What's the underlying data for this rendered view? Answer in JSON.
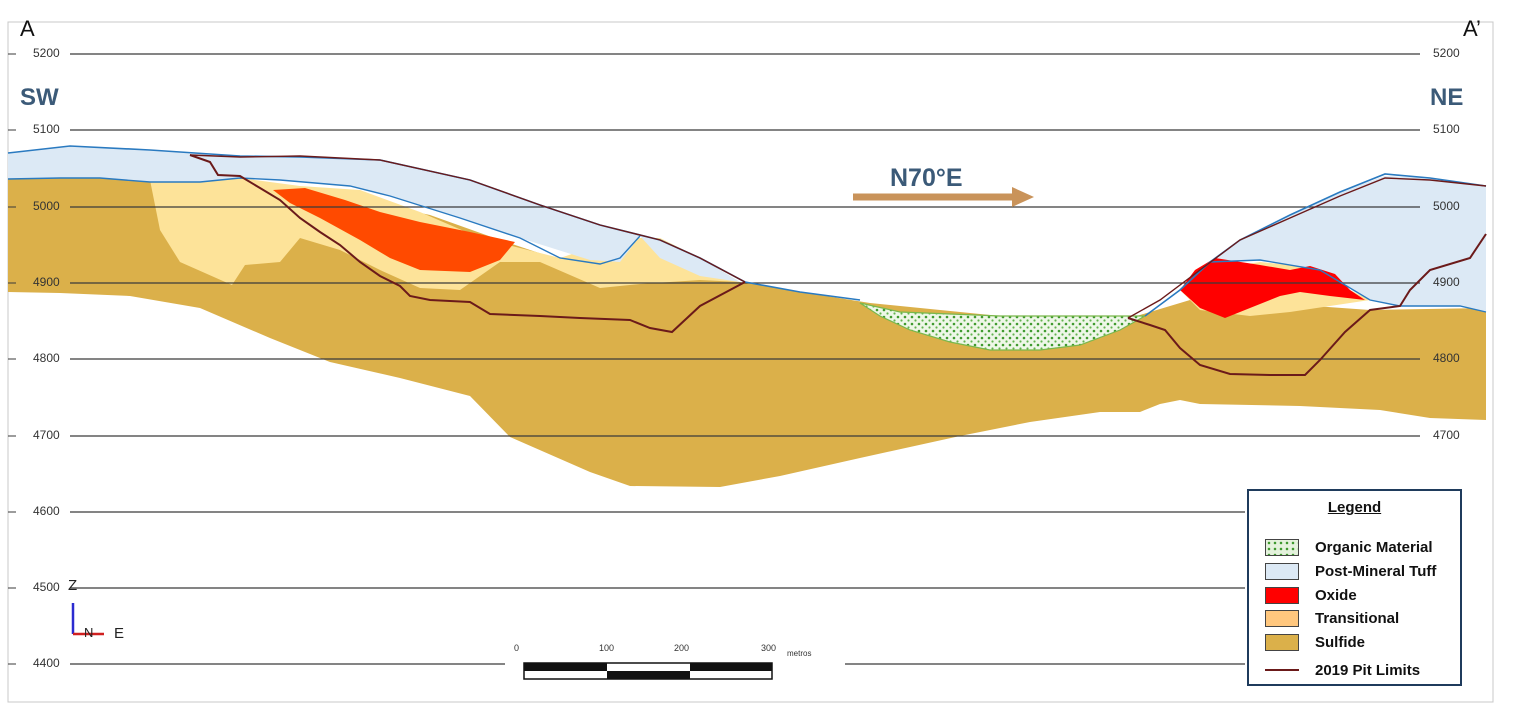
{
  "section": {
    "start_label": "A",
    "end_label": "A’",
    "left_direction": "SW",
    "right_direction": "NE",
    "bearing": "N70°E",
    "elevations": [
      "5200",
      "5100",
      "5000",
      "4900",
      "4800",
      "4700",
      "4600",
      "4500",
      "4400"
    ],
    "orientation": {
      "up": "Z",
      "into": "N",
      "right": "E"
    },
    "scale_bar": {
      "ticks": [
        "0",
        "100",
        "200",
        "300"
      ],
      "unit": "metros"
    }
  },
  "legend": {
    "title": "Legend",
    "items": [
      {
        "label": "Organic Material",
        "color": "#9fd68c",
        "pattern": "dots"
      },
      {
        "label": "Post-Mineral Tuff",
        "color": "#dce9f5"
      },
      {
        "label": "Oxide",
        "color": "#ff0000"
      },
      {
        "label": "Transitional",
        "color": "#ffc77e"
      },
      {
        "label": "Sulfide",
        "color": "#dbb04a"
      },
      {
        "label": "2019 Pit Limits",
        "color": "#6b1a1a",
        "pattern": "line"
      }
    ]
  },
  "colors": {
    "sulfide": "#dbb04a",
    "transitional": "#fde399",
    "tuff": "#dce9f5",
    "oxide_left": "#ff4a00",
    "oxide_right": "#ff0000",
    "pit": "#6b1a1a",
    "topo": "#2a7ac0",
    "arrow": "#c9935a",
    "organic": "#e4f2dc"
  }
}
